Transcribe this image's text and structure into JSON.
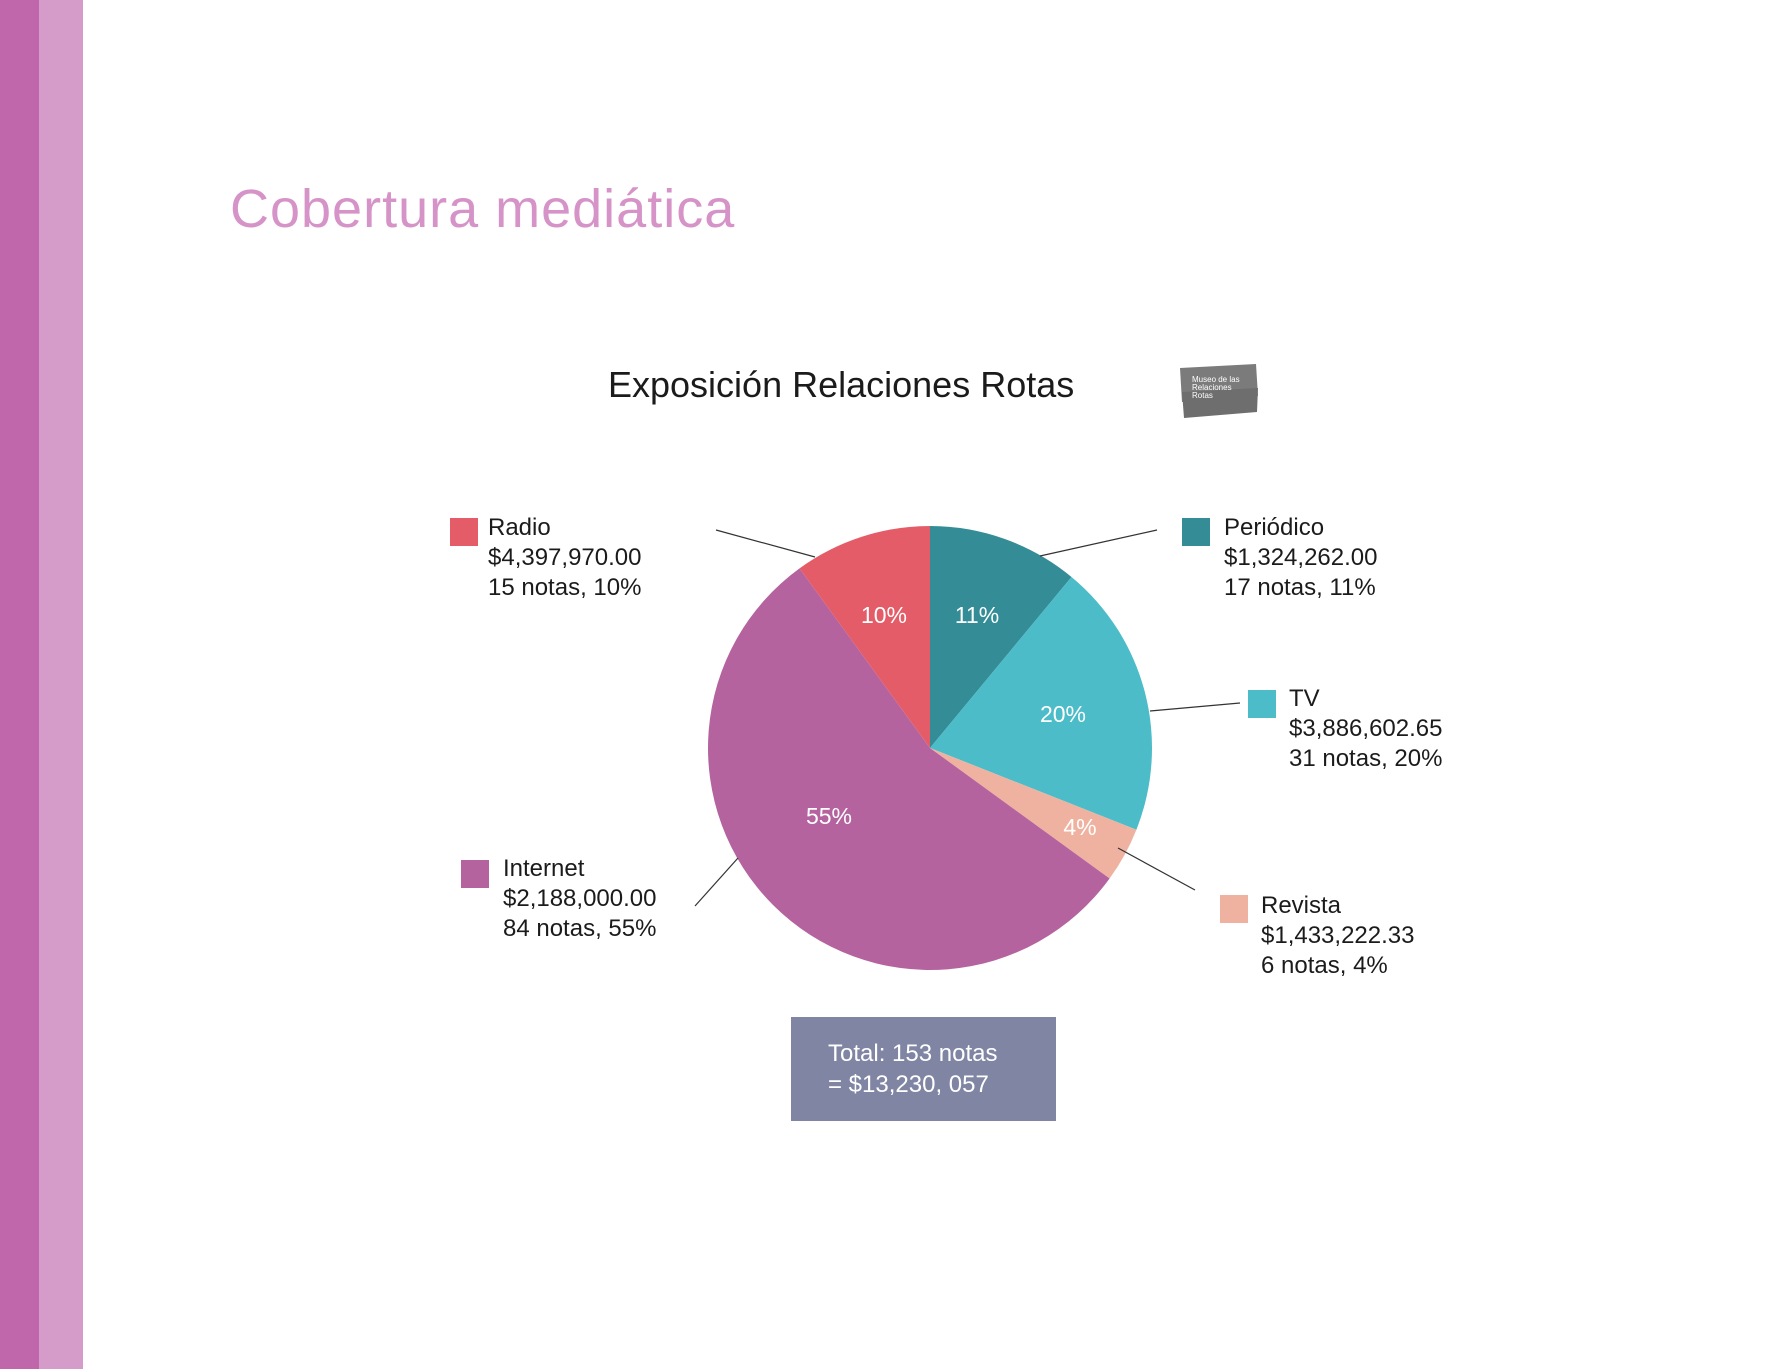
{
  "page": {
    "title": "Cobertura mediática"
  },
  "logo": {
    "text_lines": [
      "Museo de las",
      "Relaciones",
      "Rotas"
    ],
    "color": "#7b7b7b"
  },
  "total": {
    "line1": "Total: 153 notas",
    "line2": "= $13,230, 057",
    "color": "#8085a4"
  },
  "chart_data": {
    "type": "pie",
    "title": "Exposición Relaciones Rotas",
    "start_angle_deg": 0,
    "direction": "clockwise",
    "legend_placement": "outside, around the pie with leader lines",
    "slices": [
      {
        "name": "Periódico",
        "value": 11,
        "label": "11%",
        "amount": "$1,324,262.00",
        "detail": "17 notas, 11%",
        "color": "#338c96"
      },
      {
        "name": "TV",
        "value": 20,
        "label": "20%",
        "amount": "$3,886,602.65",
        "detail": "31 notas, 20%",
        "color": "#4bbcc8"
      },
      {
        "name": "Revista",
        "value": 4,
        "label": "4%",
        "amount": "$1,433,222.33",
        "detail": "6 notas, 4%",
        "color": "#f0b2a0"
      },
      {
        "name": "Internet",
        "value": 55,
        "label": "55%",
        "amount": "$2,188,000.00",
        "detail": "84 notas, 55%",
        "color": "#b5639f"
      },
      {
        "name": "Radio",
        "value": 10,
        "label": "10%",
        "amount": "$4,397,970.00",
        "detail": "15 notas, 10%",
        "color": "#e45c68"
      }
    ]
  }
}
